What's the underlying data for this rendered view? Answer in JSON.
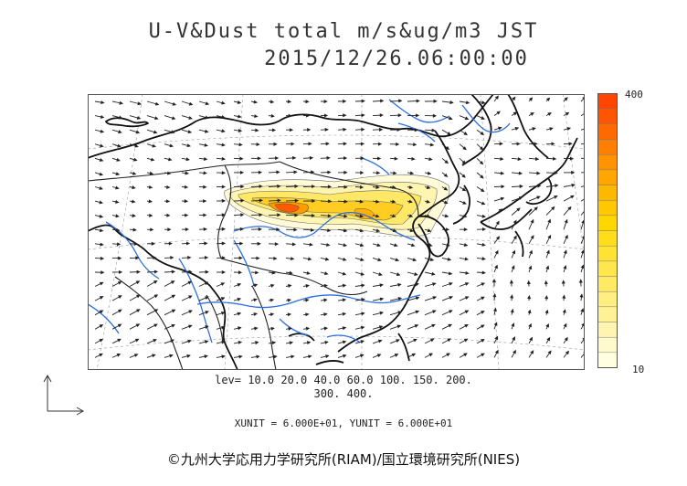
{
  "title_line1": "U-V&Dust total m/s&ug/m3 JST",
  "title_line2": "2015/12/26.06:00:00",
  "colorbar": {
    "max_label": "400",
    "min_label": "10",
    "colors": [
      "#ffffe0",
      "#fffacd",
      "#fff5b0",
      "#fff196",
      "#ffee80",
      "#ffea66",
      "#ffe64d",
      "#ffe233",
      "#ffdd1a",
      "#ffd700",
      "#ffc800",
      "#ffb800",
      "#ffa600",
      "#ff9400",
      "#ff8000",
      "#ff6a00",
      "#ff5500",
      "#ff4500"
    ]
  },
  "levels_line1": "lev= 10.0 20.0 40.0 60.0 100. 150. 200.",
  "levels_line2": "300. 400.",
  "unit_line": "XUNIT = 6.000E+01, YUNIT = 6.000E+01",
  "credit": "©九州大学応用力学研究所(RIAM)/国立環境研究所(NIES)"
}
